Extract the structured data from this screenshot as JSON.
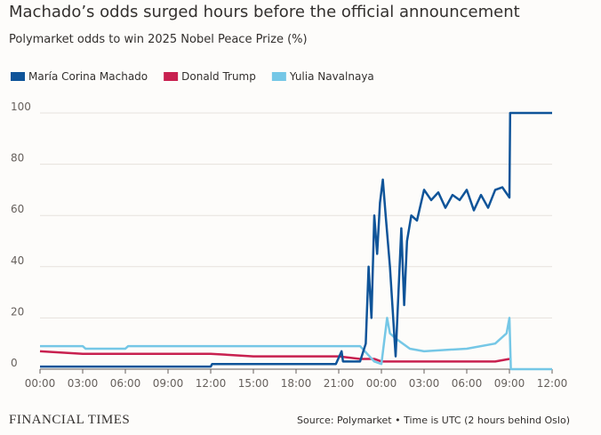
{
  "chart_data": {
    "type": "line",
    "title": "Machado’s odds surged hours before the official announcement",
    "subtitle": "Polymarket odds to win 2025 Nobel Peace Prize (%)",
    "brand": "FINANCIAL TIMES",
    "source": "Source: Polymarket • Time is UTC (2 hours behind Oslo)",
    "xlim": [
      0,
      36
    ],
    "ylim": [
      0,
      100
    ],
    "xticks": [
      {
        "value": 0,
        "label": "00:00"
      },
      {
        "value": 3,
        "label": "03:00"
      },
      {
        "value": 6,
        "label": "06:00"
      },
      {
        "value": 9,
        "label": "09:00"
      },
      {
        "value": 12,
        "label": "12:00"
      },
      {
        "value": 15,
        "label": "15:00"
      },
      {
        "value": 18,
        "label": "18:00"
      },
      {
        "value": 21,
        "label": "21:00"
      },
      {
        "value": 24,
        "label": "00:00"
      },
      {
        "value": 27,
        "label": "03:00"
      },
      {
        "value": 30,
        "label": "06:00"
      },
      {
        "value": 33,
        "label": "09:00"
      },
      {
        "value": 36,
        "label": "12:00"
      }
    ],
    "yticks": [
      0,
      20,
      40,
      60,
      80,
      100
    ],
    "grid": true,
    "series": [
      {
        "name": "María Corina Machado",
        "color": "#0f5499",
        "x": [
          0,
          6,
          12,
          12.1,
          18,
          20.8,
          21.2,
          21.3,
          22.5,
          22.9,
          23.1,
          23.3,
          23.5,
          23.7,
          23.9,
          24.1,
          24.3,
          24.6,
          25,
          25.2,
          25.4,
          25.6,
          25.8,
          26.1,
          26.5,
          27,
          27.5,
          28,
          28.5,
          29,
          29.5,
          30,
          30.5,
          31,
          31.5,
          32,
          32.5,
          33,
          33.05,
          36
        ],
        "values": [
          1,
          1,
          1,
          2,
          2,
          2,
          7,
          3,
          3,
          10,
          40,
          20,
          60,
          45,
          65,
          74,
          60,
          40,
          5,
          30,
          55,
          25,
          50,
          60,
          58,
          70,
          66,
          69,
          63,
          68,
          66,
          70,
          62,
          68,
          63,
          70,
          71,
          67,
          100,
          100
        ]
      },
      {
        "name": "Donald Trump",
        "color": "#c8204f",
        "x": [
          0,
          3,
          6,
          9,
          12,
          15,
          18,
          21,
          22.5,
          23.5,
          24,
          25,
          27,
          30,
          32,
          33
        ],
        "values": [
          7,
          6,
          6,
          6,
          6,
          5,
          5,
          5,
          4,
          4,
          3,
          3,
          3,
          3,
          3,
          4
        ]
      },
      {
        "name": "Yulia Navalnaya",
        "color": "#75c7e6",
        "x": [
          0,
          3,
          3.2,
          6,
          6.2,
          12,
          18,
          22.5,
          23.5,
          24,
          24.4,
          24.6,
          25,
          26,
          27,
          30,
          32,
          32.8,
          33,
          33.1,
          36
        ],
        "values": [
          9,
          9,
          8,
          8,
          9,
          9,
          9,
          9,
          3,
          2,
          20,
          14,
          12,
          8,
          7,
          8,
          10,
          14,
          20,
          0,
          0
        ]
      }
    ]
  }
}
